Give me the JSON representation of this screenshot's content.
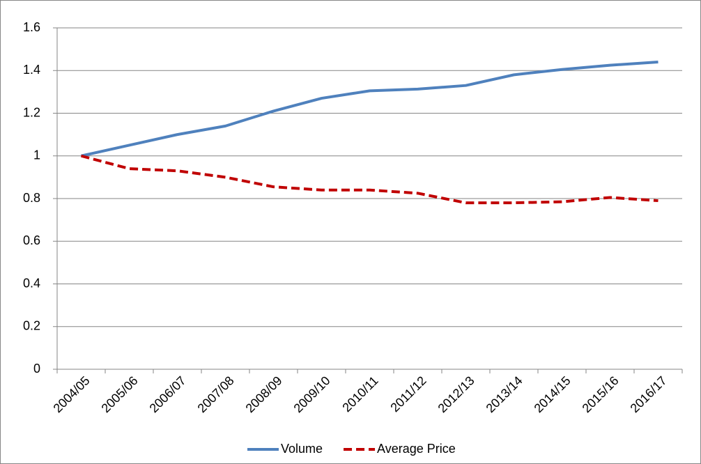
{
  "chart_data": {
    "type": "line",
    "categories": [
      "2004/05",
      "2005/06",
      "2006/07",
      "2007/08",
      "2008/09",
      "2009/10",
      "2010/11",
      "2011/12",
      "2012/13",
      "2013/14",
      "2014/15",
      "2015/16",
      "2016/17"
    ],
    "series": [
      {
        "name": "Volume",
        "color": "#4f81bd",
        "dash": "solid",
        "values": [
          1.0,
          1.05,
          1.1,
          1.14,
          1.21,
          1.27,
          1.305,
          1.313,
          1.33,
          1.38,
          1.405,
          1.425,
          1.44
        ]
      },
      {
        "name": "Average Price",
        "color": "#c00000",
        "dash": "dashed",
        "values": [
          1.0,
          0.94,
          0.93,
          0.9,
          0.855,
          0.84,
          0.84,
          0.825,
          0.78,
          0.78,
          0.785,
          0.805,
          0.79
        ]
      }
    ],
    "ylim": [
      0,
      1.6
    ],
    "yticks": [
      0,
      0.2,
      0.4,
      0.6,
      0.8,
      1,
      1.2,
      1.4,
      1.6
    ],
    "grid": true,
    "legend": "bottom"
  }
}
